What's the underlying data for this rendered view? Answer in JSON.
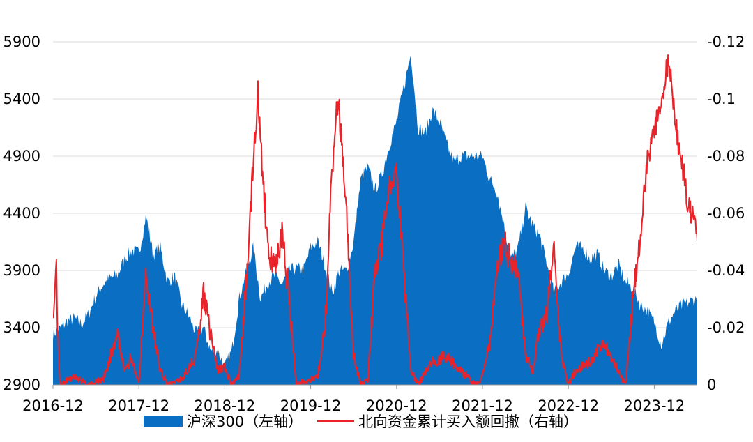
{
  "chart_data": {
    "type": "area+line",
    "title": "",
    "x_ticks": [
      "2016-12",
      "2017-12",
      "2018-12",
      "2019-12",
      "2020-12",
      "2021-12",
      "2022-12",
      "2023-12"
    ],
    "x_range": [
      "2016-12",
      "2024-06"
    ],
    "y_left": {
      "ticks": [
        "5900",
        "5400",
        "4900",
        "4400",
        "3900",
        "3400",
        "2900"
      ],
      "range": [
        2900,
        5900
      ]
    },
    "y_right": {
      "ticks": [
        "-0.12",
        "-0.1",
        "-0.08",
        "-0.06",
        "-0.04",
        "-0.02",
        "0"
      ],
      "range": [
        0,
        -0.12
      ],
      "inverted": true
    },
    "grid": "horizontal",
    "legend_position": "bottom",
    "series": [
      {
        "name": "沪深300（左轴）",
        "type": "area",
        "axis": "left",
        "color": "#0a6fc2",
        "points": [
          [
            "2016-12",
            3350
          ],
          [
            "2017-01",
            3390
          ],
          [
            "2017-02",
            3460
          ],
          [
            "2017-03",
            3480
          ],
          [
            "2017-04",
            3430
          ],
          [
            "2017-05",
            3520
          ],
          [
            "2017-06",
            3680
          ],
          [
            "2017-07",
            3780
          ],
          [
            "2017-08",
            3830
          ],
          [
            "2017-09",
            3860
          ],
          [
            "2017-10",
            4000
          ],
          [
            "2017-11",
            4080
          ],
          [
            "2017-12",
            4050
          ],
          [
            "2018-01",
            4380
          ],
          [
            "2018-02",
            4040
          ],
          [
            "2018-03",
            4100
          ],
          [
            "2018-04",
            3800
          ],
          [
            "2018-05",
            3850
          ],
          [
            "2018-06",
            3600
          ],
          [
            "2018-07",
            3500
          ],
          [
            "2018-08",
            3350
          ],
          [
            "2018-09",
            3400
          ],
          [
            "2018-10",
            3200
          ],
          [
            "2018-11",
            3200
          ],
          [
            "2018-12",
            3050
          ],
          [
            "2019-01",
            3200
          ],
          [
            "2019-02",
            3650
          ],
          [
            "2019-03",
            3900
          ],
          [
            "2019-04",
            4100
          ],
          [
            "2019-05",
            3650
          ],
          [
            "2019-06",
            3800
          ],
          [
            "2019-07",
            3850
          ],
          [
            "2019-08",
            3780
          ],
          [
            "2019-09",
            3900
          ],
          [
            "2019-10",
            3920
          ],
          [
            "2019-11",
            3900
          ],
          [
            "2019-12",
            4100
          ],
          [
            "2020-01",
            4150
          ],
          [
            "2020-02",
            3950
          ],
          [
            "2020-03",
            3700
          ],
          [
            "2020-04",
            3900
          ],
          [
            "2020-05",
            3900
          ],
          [
            "2020-06",
            4150
          ],
          [
            "2020-07",
            4700
          ],
          [
            "2020-08",
            4800
          ],
          [
            "2020-09",
            4600
          ],
          [
            "2020-10",
            4750
          ],
          [
            "2020-11",
            5000
          ],
          [
            "2020-12",
            5200
          ],
          [
            "2021-01",
            5500
          ],
          [
            "2021-02",
            5800
          ],
          [
            "2021-03",
            5150
          ],
          [
            "2021-04",
            5100
          ],
          [
            "2021-05",
            5300
          ],
          [
            "2021-06",
            5200
          ],
          [
            "2021-07",
            5000
          ],
          [
            "2021-08",
            4850
          ],
          [
            "2021-09",
            4900
          ],
          [
            "2021-10",
            4900
          ],
          [
            "2021-11",
            4900
          ],
          [
            "2021-12",
            4900
          ],
          [
            "2022-01",
            4700
          ],
          [
            "2022-02",
            4600
          ],
          [
            "2022-03",
            4300
          ],
          [
            "2022-04",
            4000
          ],
          [
            "2022-05",
            4100
          ],
          [
            "2022-06",
            4450
          ],
          [
            "2022-07",
            4300
          ],
          [
            "2022-08",
            4200
          ],
          [
            "2022-09",
            3950
          ],
          [
            "2022-10",
            3700
          ],
          [
            "2022-11",
            3800
          ],
          [
            "2022-12",
            3870
          ],
          [
            "2023-01",
            4100
          ],
          [
            "2023-02",
            4100
          ],
          [
            "2023-03",
            4000
          ],
          [
            "2023-04",
            4050
          ],
          [
            "2023-05",
            3900
          ],
          [
            "2023-06",
            3850
          ],
          [
            "2023-07",
            3950
          ],
          [
            "2023-08",
            3800
          ],
          [
            "2023-09",
            3750
          ],
          [
            "2023-10",
            3600
          ],
          [
            "2023-11",
            3550
          ],
          [
            "2023-12",
            3450
          ],
          [
            "2024-01",
            3250
          ],
          [
            "2024-02",
            3450
          ],
          [
            "2024-03",
            3550
          ],
          [
            "2024-04",
            3600
          ],
          [
            "2024-05",
            3630
          ],
          [
            "2024-06",
            3650
          ]
        ]
      },
      {
        "name": "北向资金累计买入额回撤（右轴）",
        "type": "line",
        "axis": "right",
        "color": "#e8242a",
        "points": [
          [
            "2016-12",
            -0.02
          ],
          [
            "2016-12-10",
            -0.04
          ],
          [
            "2016-12-15",
            -0.047
          ],
          [
            "2016-12-20",
            -0.02
          ],
          [
            "2017-01",
            0
          ],
          [
            "2017-03",
            -0.003
          ],
          [
            "2017-05",
            0
          ],
          [
            "2017-07",
            -0.002
          ],
          [
            "2017-09",
            -0.018
          ],
          [
            "2017-10",
            -0.004
          ],
          [
            "2017-11",
            -0.01
          ],
          [
            "2017-12",
            0
          ],
          [
            "2018-01",
            -0.038
          ],
          [
            "2018-02",
            -0.02
          ],
          [
            "2018-03",
            -0.005
          ],
          [
            "2018-04",
            0
          ],
          [
            "2018-06",
            -0.002
          ],
          [
            "2018-08",
            -0.01
          ],
          [
            "2018-09",
            -0.032
          ],
          [
            "2018-10",
            -0.018
          ],
          [
            "2018-11",
            -0.005
          ],
          [
            "2018-12",
            -0.006
          ],
          [
            "2019-01",
            0
          ],
          [
            "2019-02",
            -0.003
          ],
          [
            "2019-03",
            -0.035
          ],
          [
            "2019-04",
            -0.08
          ],
          [
            "2019-04-20",
            -0.102
          ],
          [
            "2019-05",
            -0.085
          ],
          [
            "2019-06",
            -0.047
          ],
          [
            "2019-07",
            -0.04
          ],
          [
            "2019-08",
            -0.052
          ],
          [
            "2019-09",
            -0.03
          ],
          [
            "2019-10",
            0
          ],
          [
            "2019-12",
            -0.002
          ],
          [
            "2020-01",
            -0.003
          ],
          [
            "2020-02",
            -0.02
          ],
          [
            "2020-03",
            -0.075
          ],
          [
            "2020-03-20",
            -0.1
          ],
          [
            "2020-04",
            -0.095
          ],
          [
            "2020-05",
            -0.06
          ],
          [
            "2020-06",
            -0.01
          ],
          [
            "2020-07",
            0
          ],
          [
            "2020-08",
            -0.002
          ],
          [
            "2020-09",
            -0.04
          ],
          [
            "2020-10",
            -0.05
          ],
          [
            "2020-11",
            -0.07
          ],
          [
            "2020-12",
            -0.075
          ],
          [
            "2021-01",
            -0.04
          ],
          [
            "2021-02",
            -0.005
          ],
          [
            "2021-03",
            0
          ],
          [
            "2021-05",
            -0.008
          ],
          [
            "2021-07",
            -0.01
          ],
          [
            "2021-09",
            -0.005
          ],
          [
            "2021-11",
            0
          ],
          [
            "2021-12",
            -0.003
          ],
          [
            "2022-01",
            -0.015
          ],
          [
            "2022-02",
            -0.04
          ],
          [
            "2022-03",
            -0.05
          ],
          [
            "2022-04",
            -0.042
          ],
          [
            "2022-05",
            -0.04
          ],
          [
            "2022-06",
            -0.01
          ],
          [
            "2022-07",
            -0.005
          ],
          [
            "2022-08",
            -0.02
          ],
          [
            "2022-09",
            -0.025
          ],
          [
            "2022-10",
            -0.05
          ],
          [
            "2022-11",
            -0.01
          ],
          [
            "2022-12",
            0
          ],
          [
            "2023-01",
            -0.005
          ],
          [
            "2023-03",
            -0.008
          ],
          [
            "2023-05",
            -0.015
          ],
          [
            "2023-07",
            -0.005
          ],
          [
            "2023-08",
            0
          ],
          [
            "2023-09",
            -0.03
          ],
          [
            "2023-10",
            -0.05
          ],
          [
            "2023-11",
            -0.08
          ],
          [
            "2023-12",
            -0.088
          ],
          [
            "2024-01",
            -0.1
          ],
          [
            "2024-02",
            -0.113
          ],
          [
            "2024-03",
            -0.09
          ],
          [
            "2024-04",
            -0.075
          ],
          [
            "2024-05",
            -0.06
          ],
          [
            "2024-06",
            -0.055
          ]
        ]
      }
    ]
  }
}
